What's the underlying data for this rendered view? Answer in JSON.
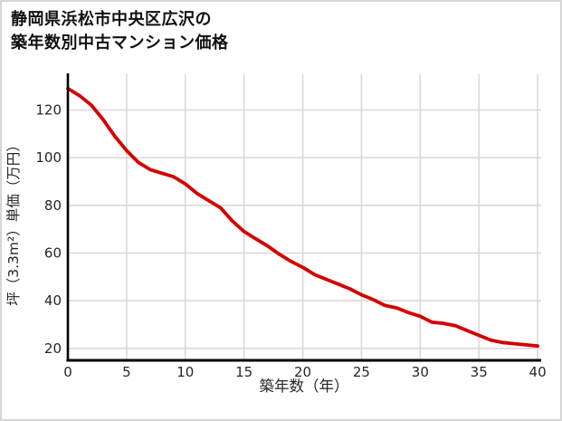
{
  "title": {
    "line1": "静岡県浜松市中央区広沢の",
    "line2": "築年数別中古マンション価格"
  },
  "chart_data": {
    "type": "line",
    "title": "静岡県浜松市中央区広沢の築年数別中古マンション価格",
    "xlabel": "築年数（年）",
    "ylabel": "坪（3.3m²）単価（万円）",
    "x": [
      0,
      1,
      2,
      3,
      4,
      5,
      6,
      7,
      8,
      9,
      10,
      11,
      12,
      13,
      14,
      15,
      16,
      17,
      18,
      19,
      20,
      21,
      22,
      23,
      24,
      25,
      26,
      27,
      28,
      29,
      30,
      31,
      32,
      33,
      34,
      35,
      36,
      37,
      38,
      39,
      40
    ],
    "values": [
      129,
      126,
      122,
      116,
      109,
      103,
      98,
      95,
      93.5,
      92,
      89,
      85,
      82,
      79,
      73.5,
      69,
      66,
      63,
      59.5,
      56.5,
      54,
      51,
      49,
      47,
      45,
      42.5,
      40.5,
      38,
      37,
      35,
      33.5,
      31,
      30.5,
      29.5,
      27.5,
      25.5,
      23.5,
      22.5,
      22,
      21.5,
      21
    ],
    "series_name": "坪単価（万円）",
    "x_ticks": [
      0,
      5,
      10,
      15,
      20,
      25,
      30,
      35,
      40
    ],
    "y_ticks": [
      20,
      40,
      60,
      80,
      100,
      120
    ],
    "xlim": [
      0,
      40.3
    ],
    "ylim": [
      15,
      135
    ],
    "grid": true,
    "legend": "none",
    "line_color": "#d40000",
    "grid_color": "#d9d9d9",
    "axis_color": "#000000",
    "tick_label_color": "#262626",
    "background_color": "#ffffff"
  }
}
